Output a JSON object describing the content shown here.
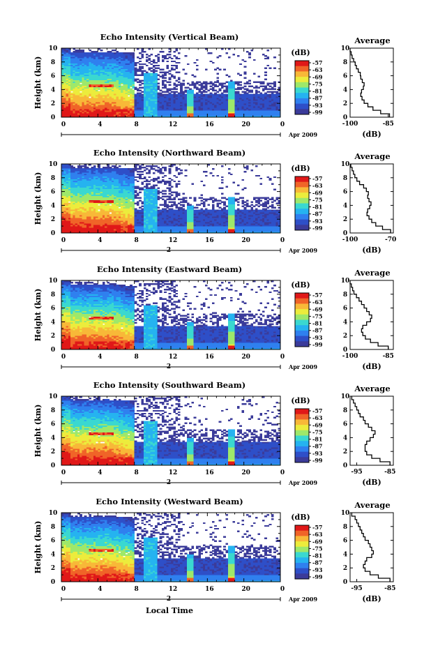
{
  "figure": {
    "x_common_label": "Local Time",
    "date_label": "Apr 2009",
    "day_marker": "2",
    "colorbar_unit": "(dB)",
    "colorbar_ticks": [
      "-57",
      "-63",
      "-69",
      "-75",
      "-81",
      "-87",
      "-93",
      "-99"
    ],
    "height_label": "Height (km)",
    "avg_title": "Average",
    "avg_xlabel": "(dB)"
  },
  "colors": {
    "scale": [
      "#3b3b9a",
      "#2e4fc8",
      "#2f80ef",
      "#25b3f0",
      "#3ad8d0",
      "#9ee86a",
      "#ecec3c",
      "#f8b838",
      "#f06428",
      "#e01818"
    ]
  },
  "chart_data": [
    {
      "type": "heatmap",
      "title": "Echo Intensity (Vertical Beam)",
      "xlabel": "",
      "ylabel": "Height (km)",
      "x_ticks": [
        "0",
        "4",
        "8",
        "12",
        "16",
        "20",
        "0"
      ],
      "xlim": [
        0,
        24
      ],
      "y_ticks": [
        "0",
        "2",
        "4",
        "6",
        "8",
        "10"
      ],
      "ylim": [
        0,
        10
      ],
      "colorbar": {
        "unit": "(dB)",
        "ticks": [
          -57,
          -63,
          -69,
          -75,
          -81,
          -87,
          -93,
          -99
        ]
      },
      "avg_profile": {
        "title": "Average",
        "xlabel": "(dB)",
        "x_ticks": [
          "-100",
          "-85"
        ],
        "xlim": [
          -100,
          -83
        ],
        "y_ticks": [
          "0",
          "2",
          "4",
          "6",
          "8",
          "10"
        ],
        "heights": [
          0,
          0.5,
          1,
          1.5,
          2,
          2.5,
          3,
          3.5,
          4,
          4.5,
          5,
          5.5,
          6,
          6.5,
          7,
          7.5,
          8,
          8.5,
          9,
          9.5
        ],
        "values": [
          -84.5,
          -88,
          -91,
          -93,
          -94.5,
          -95.3,
          -95.8,
          -95.5,
          -94.8,
          -94.5,
          -95.2,
          -95.8,
          -96,
          -96.8,
          -97.5,
          -98,
          -98.6,
          -99.2,
          -99.6,
          -100
        ]
      }
    },
    {
      "type": "heatmap",
      "title": "Echo Intensity (Northward Beam)",
      "xlabel": "",
      "ylabel": "Height (km)",
      "x_ticks": [
        "0",
        "4",
        "8",
        "12",
        "16",
        "20",
        "0"
      ],
      "xlim": [
        0,
        24
      ],
      "y_ticks": [
        "0",
        "2",
        "4",
        "6",
        "8",
        "10"
      ],
      "ylim": [
        0,
        10
      ],
      "colorbar": {
        "unit": "(dB)",
        "ticks": [
          -57,
          -63,
          -69,
          -75,
          -81,
          -87,
          -93,
          -99
        ]
      },
      "avg_profile": {
        "title": "Average",
        "xlabel": "(dB)",
        "x_ticks": [
          "-100",
          "-70"
        ],
        "xlim": [
          -100,
          -68
        ],
        "y_ticks": [
          "0",
          "2",
          "4",
          "6",
          "8",
          "10"
        ],
        "heights": [
          0,
          0.5,
          1,
          1.5,
          2,
          2.5,
          3,
          3.5,
          4,
          4.5,
          5,
          5.5,
          6,
          6.5,
          7,
          7.5,
          8,
          8.5,
          9,
          9.5
        ],
        "values": [
          -70,
          -76,
          -81,
          -84,
          -86,
          -87.5,
          -87,
          -85.5,
          -84.5,
          -86,
          -87,
          -86.5,
          -88,
          -90,
          -93,
          -95,
          -96.5,
          -97.5,
          -98.5,
          -99.5
        ]
      }
    },
    {
      "type": "heatmap",
      "title": "Echo Intensity (Eastward Beam)",
      "xlabel": "",
      "ylabel": "Height (km)",
      "x_ticks": [
        "0",
        "4",
        "8",
        "12",
        "16",
        "20",
        "0"
      ],
      "xlim": [
        0,
        24
      ],
      "y_ticks": [
        "0",
        "2",
        "4",
        "6",
        "8",
        "10"
      ],
      "ylim": [
        0,
        10
      ],
      "colorbar": {
        "unit": "(dB)",
        "ticks": [
          -57,
          -63,
          -69,
          -75,
          -81,
          -87,
          -93,
          -99
        ]
      },
      "avg_profile": {
        "title": "Average",
        "xlabel": "(dB)",
        "x_ticks": [
          "-100",
          "-85"
        ],
        "xlim": [
          -100,
          -83
        ],
        "y_ticks": [
          "0",
          "2",
          "4",
          "6",
          "8",
          "10"
        ],
        "heights": [
          0,
          0.5,
          1,
          1.5,
          2,
          2.5,
          3,
          3.5,
          4,
          4.5,
          5,
          5.5,
          6,
          6.5,
          7,
          7.5,
          8,
          8.5,
          9,
          9.5
        ],
        "values": [
          -85,
          -89,
          -92,
          -94,
          -95,
          -95.5,
          -95,
          -93.5,
          -92,
          -91.5,
          -92.5,
          -93.5,
          -94.5,
          -95.5,
          -96.5,
          -97.5,
          -98.5,
          -99,
          -99.5,
          -100
        ]
      }
    },
    {
      "type": "heatmap",
      "title": "Echo Intensity (Southward Beam)",
      "xlabel": "",
      "ylabel": "Height (km)",
      "x_ticks": [
        "0",
        "4",
        "8",
        "12",
        "16",
        "20",
        "0"
      ],
      "xlim": [
        0,
        24
      ],
      "y_ticks": [
        "0",
        "2",
        "4",
        "6",
        "8",
        "10"
      ],
      "ylim": [
        0,
        10
      ],
      "colorbar": {
        "unit": "(dB)",
        "ticks": [
          -57,
          -63,
          -69,
          -75,
          -81,
          -87,
          -93,
          -99
        ]
      },
      "avg_profile": {
        "title": "Average",
        "xlabel": "(dB)",
        "x_ticks": [
          "-95",
          "-85"
        ],
        "xlim": [
          -97,
          -84
        ],
        "y_ticks": [
          "0",
          "2",
          "4",
          "6",
          "8",
          "10"
        ],
        "heights": [
          0,
          0.5,
          1,
          1.5,
          2,
          2.5,
          3,
          3.5,
          4,
          4.5,
          5,
          5.5,
          6,
          6.5,
          7,
          7.5,
          8,
          8.5,
          9,
          9.5
        ],
        "values": [
          -85,
          -88,
          -90.5,
          -92,
          -92.5,
          -92.5,
          -92,
          -91,
          -90,
          -89.5,
          -90.5,
          -91.5,
          -92.5,
          -93,
          -94,
          -94.5,
          -95,
          -95.5,
          -96,
          -96.5
        ]
      }
    },
    {
      "type": "heatmap",
      "title": "Echo Intensity (Westward Beam)",
      "xlabel": "Local Time",
      "ylabel": "Height (km)",
      "x_ticks": [
        "0",
        "4",
        "8",
        "12",
        "16",
        "20",
        "0"
      ],
      "xlim": [
        0,
        24
      ],
      "y_ticks": [
        "0",
        "2",
        "4",
        "6",
        "8",
        "10"
      ],
      "ylim": [
        0,
        10
      ],
      "colorbar": {
        "unit": "(dB)",
        "ticks": [
          -57,
          -63,
          -69,
          -75,
          -81,
          -87,
          -93,
          -99
        ]
      },
      "avg_profile": {
        "title": "Average",
        "xlabel": "(dB)",
        "x_ticks": [
          "-95",
          "-85"
        ],
        "xlim": [
          -97,
          -84
        ],
        "y_ticks": [
          "0",
          "2",
          "4",
          "6",
          "8",
          "10"
        ],
        "heights": [
          0,
          0.5,
          1,
          1.5,
          2,
          2.5,
          3,
          3.5,
          4,
          4.5,
          5,
          5.5,
          6,
          6.5,
          7,
          7.5,
          8,
          8.5,
          9,
          9.5
        ],
        "values": [
          -85,
          -88.5,
          -91,
          -92.5,
          -93,
          -92.5,
          -92,
          -90.5,
          -90,
          -90.5,
          -91,
          -91.5,
          -92.5,
          -93,
          -93.5,
          -94,
          -94.5,
          -95,
          -95.5,
          -96.5
        ]
      }
    }
  ]
}
